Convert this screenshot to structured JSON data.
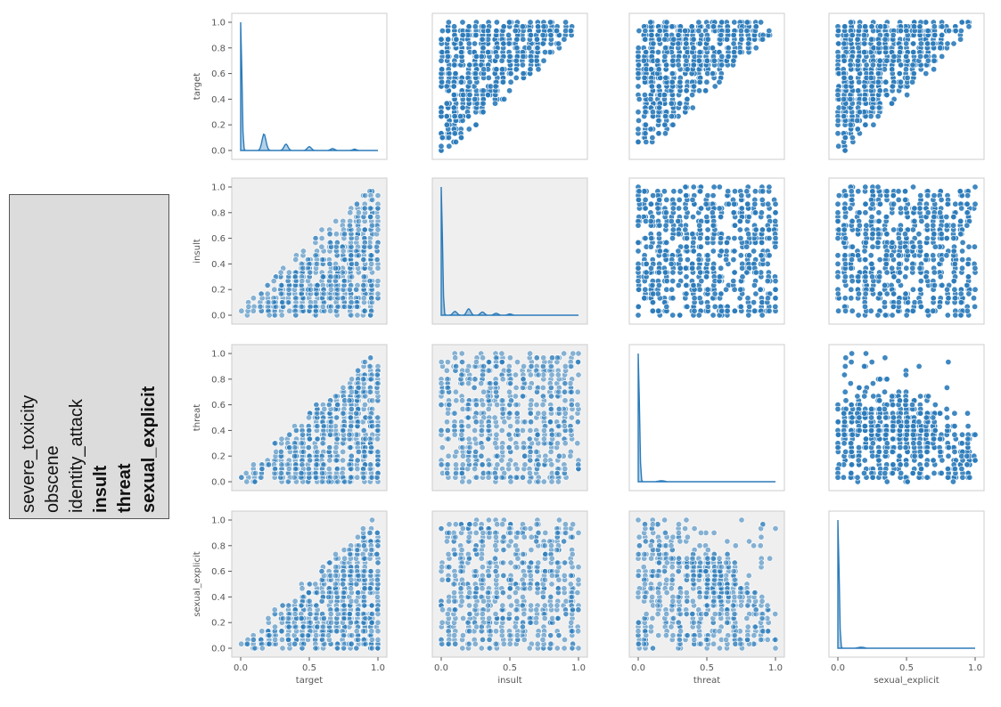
{
  "legend": {
    "items": [
      {
        "label": "severe_toxicity",
        "bold": false
      },
      {
        "label": "obscene",
        "bold": false
      },
      {
        "label": "identity_attack",
        "bold": false
      },
      {
        "label": "insult",
        "bold": true
      },
      {
        "label": "threat",
        "bold": true
      },
      {
        "label": "sexual_explicit",
        "bold": true
      }
    ]
  },
  "chart_data": {
    "type": "scatter",
    "kind": "pairplot",
    "variables": [
      "target",
      "insult",
      "threat",
      "sexual_explicit"
    ],
    "xlim": [
      0,
      1
    ],
    "ylim": [
      0,
      1
    ],
    "x_ticks": [
      "0.0",
      "0.5",
      "1.0"
    ],
    "y_ticks": [
      "0.0",
      "0.2",
      "0.4",
      "0.6",
      "0.8",
      "1.0"
    ],
    "point_color": "#2b7bba",
    "diagonal_type": "kde",
    "highlighted_panels": [
      [
        1,
        0
      ],
      [
        1,
        1
      ],
      [
        2,
        0
      ],
      [
        2,
        1
      ],
      [
        3,
        0
      ],
      [
        3,
        1
      ],
      [
        3,
        2
      ]
    ],
    "highlight_color": "#efefef",
    "relationships": {
      "1-0": "triangle: target >= insult",
      "2-0": "triangle: target >= threat",
      "3-0": "triangle: target >= sexual_explicit",
      "2-1": "uniform spread",
      "3-1": "uniform spread",
      "3-2": "sparse at high threat and high sexual_explicit"
    }
  }
}
